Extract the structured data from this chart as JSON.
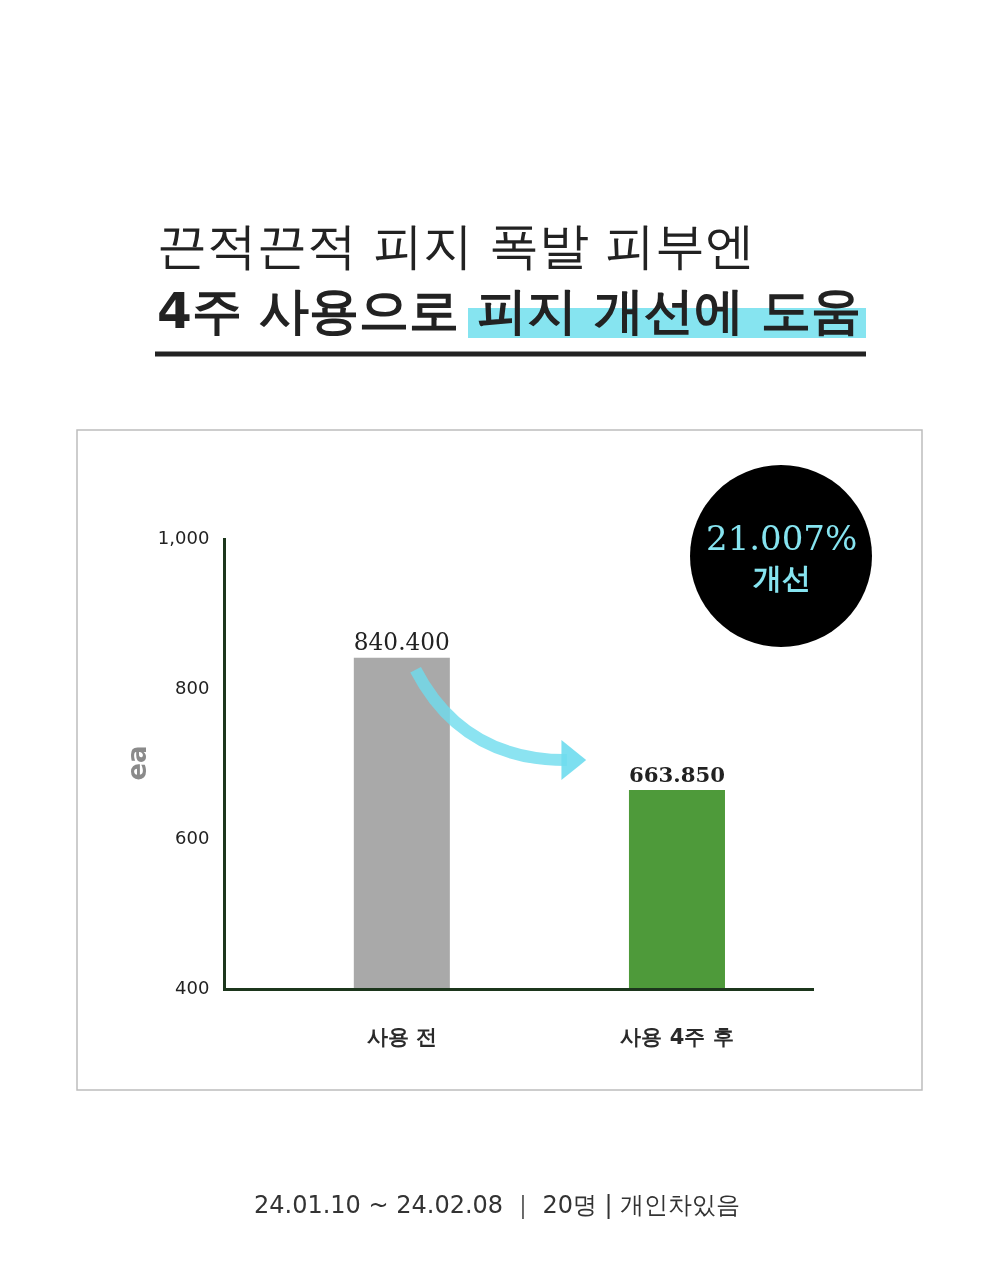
{
  "chart_data": {
    "type": "bar",
    "title": "끈적끈적 피지 폭발 피부엔\n4주 사용으로 피지 개선에 도움",
    "ylabel": "ea",
    "categories": [
      "사용 전",
      "사용 4주 후"
    ],
    "values": [
      840.4,
      663.85
    ],
    "colors": [
      "#a9a9a9",
      "#4e9a3a"
    ],
    "value_labels": [
      "840.400",
      "663.850"
    ],
    "ylim": [
      400,
      1000
    ],
    "yticks": [
      400,
      600,
      800,
      {
        "value": 1000,
        "label": "1,000"
      }
    ],
    "annotations": [
      "21.007%\n개선",
      "24.01.10 ~ 24.02.08 ｜ 20명 | 개인차있음"
    ]
  }
}
